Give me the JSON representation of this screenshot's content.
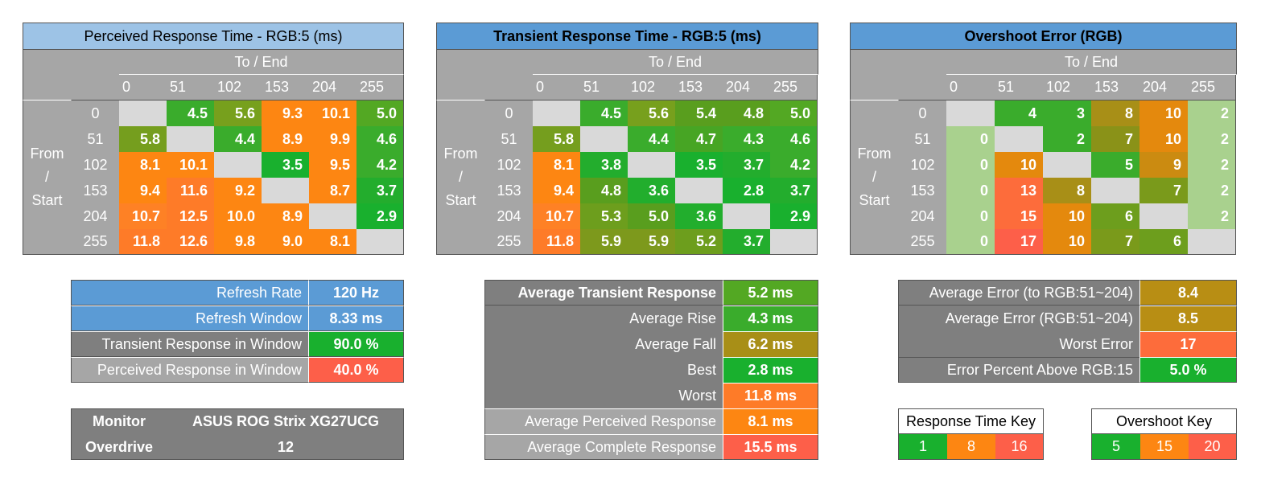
{
  "charts": {
    "prt": {
      "title": "Perceived Response Time - RGB:5 (ms)",
      "to_label": "To / End",
      "from_label": "From\n/\nStart",
      "col_ticks": [
        "0",
        "51",
        "102",
        "153",
        "204",
        "255"
      ],
      "row_ticks": [
        "0",
        "51",
        "102",
        "153",
        "204",
        "255"
      ]
    },
    "trt": {
      "title": "Transient Response Time - RGB:5 (ms)",
      "to_label": "To / End",
      "from_label": "From\n/\nStart",
      "col_ticks": [
        "0",
        "51",
        "102",
        "153",
        "204",
        "255"
      ],
      "row_ticks": [
        "0",
        "51",
        "102",
        "153",
        "204",
        "255"
      ]
    },
    "ovs": {
      "title": "Overshoot Error (RGB)",
      "to_label": "To / End",
      "from_label": "From\n/\nStart",
      "col_ticks": [
        "0",
        "51",
        "102",
        "153",
        "204",
        "255"
      ],
      "row_ticks": [
        "0",
        "51",
        "102",
        "153",
        "204",
        "255"
      ]
    }
  },
  "chart_data": [
    {
      "type": "heatmap",
      "title": "Perceived Response Time - RGB:5 (ms)",
      "xlabel": "To / End",
      "ylabel": "From / Start",
      "x": [
        0,
        51,
        102,
        153,
        204,
        255
      ],
      "y": [
        0,
        51,
        102,
        153,
        204,
        255
      ],
      "values": [
        [
          null,
          "4.5",
          "5.6",
          "9.3",
          "10.1",
          "5.0"
        ],
        [
          "5.8",
          null,
          "4.4",
          "8.9",
          "9.9",
          "4.6"
        ],
        [
          "8.1",
          "10.1",
          null,
          "3.5",
          "9.5",
          "4.2"
        ],
        [
          "9.4",
          "11.6",
          "9.2",
          null,
          "8.7",
          "3.7"
        ],
        [
          "10.7",
          "12.5",
          "10.0",
          "8.9",
          null,
          "2.9"
        ],
        [
          "11.8",
          "12.6",
          "9.8",
          "9.0",
          "8.1",
          null
        ]
      ],
      "colors": [
        [
          "#d9d9d9",
          "#3aac2c",
          "#77a01d",
          "#fd8612",
          "#fd8612",
          "#53a823"
        ],
        [
          "#759e1e",
          "#d9d9d9",
          "#3aac2c",
          "#fd8612",
          "#fd8612",
          "#3aac2c"
        ],
        [
          "#fd8612",
          "#fd8612",
          "#d9d9d9",
          "#19b02e",
          "#fd8612",
          "#3aac2c"
        ],
        [
          "#fd8612",
          "#fe7b28",
          "#fd8612",
          "#d9d9d9",
          "#fd8612",
          "#23ad2d"
        ],
        [
          "#fe8125",
          "#fe7b28",
          "#fd8612",
          "#fd8612",
          "#d9d9d9",
          "#19b02e"
        ],
        [
          "#fe7b28",
          "#fe7b28",
          "#fd8612",
          "#fd8612",
          "#fd8612",
          "#d9d9d9"
        ]
      ]
    },
    {
      "type": "heatmap",
      "title": "Transient Response Time - RGB:5 (ms)",
      "xlabel": "To / End",
      "ylabel": "From / Start",
      "x": [
        0,
        51,
        102,
        153,
        204,
        255
      ],
      "y": [
        0,
        51,
        102,
        153,
        204,
        255
      ],
      "values": [
        [
          null,
          "4.5",
          "5.6",
          "5.4",
          "4.8",
          "5.0"
        ],
        [
          "5.8",
          null,
          "4.4",
          "4.7",
          "4.3",
          "4.6"
        ],
        [
          "8.1",
          "3.8",
          null,
          "3.5",
          "3.7",
          "4.2"
        ],
        [
          "9.4",
          "4.8",
          "3.6",
          null,
          "2.8",
          "3.7"
        ],
        [
          "10.7",
          "5.3",
          "5.0",
          "3.6",
          null,
          "2.9"
        ],
        [
          "11.8",
          "5.9",
          "5.9",
          "5.2",
          "3.7",
          null
        ]
      ],
      "colors": [
        [
          "#d9d9d9",
          "#3aac2c",
          "#77a01d",
          "#599e1e",
          "#599e1e",
          "#53a823"
        ],
        [
          "#759e1e",
          "#d9d9d9",
          "#3aac2c",
          "#47a524",
          "#3aac2c",
          "#3aac2c"
        ],
        [
          "#fd8612",
          "#23ad2d",
          "#d9d9d9",
          "#19b02e",
          "#23ad2d",
          "#3aac2c"
        ],
        [
          "#fd8612",
          "#599e1e",
          "#22ae2d",
          "#d9d9d9",
          "#19b02e",
          "#23ad2d"
        ],
        [
          "#fe8125",
          "#6d9e1d",
          "#599e1e",
          "#22ae2d",
          "#d9d9d9",
          "#19b02e"
        ],
        [
          "#fe7b28",
          "#7d991c",
          "#7d991c",
          "#6d9e1d",
          "#23ad2d",
          "#d9d9d9"
        ]
      ]
    },
    {
      "type": "heatmap",
      "title": "Overshoot Error (RGB)",
      "xlabel": "To / End",
      "ylabel": "From / Start",
      "x": [
        0,
        51,
        102,
        153,
        204,
        255
      ],
      "y": [
        0,
        51,
        102,
        153,
        204,
        255
      ],
      "values": [
        [
          null,
          "4",
          "3",
          "8",
          "10",
          "2"
        ],
        [
          "0",
          null,
          "2",
          "7",
          "10",
          "2"
        ],
        [
          "0",
          "10",
          null,
          "5",
          "9",
          "2"
        ],
        [
          "0",
          "13",
          "8",
          null,
          "7",
          "2"
        ],
        [
          "0",
          "15",
          "10",
          "6",
          null,
          "2"
        ],
        [
          "0",
          "17",
          "10",
          "7",
          "6",
          null
        ]
      ],
      "colors": [
        [
          "#d9d9d9",
          "#3aac2c",
          "#3aac2c",
          "#a88f17",
          "#e4890d",
          "#a9d18e"
        ],
        [
          "#a9d18e",
          "#d9d9d9",
          "#3aac2c",
          "#8a9218",
          "#e4890d",
          "#a9d18e"
        ],
        [
          "#a9d18e",
          "#e4890d",
          "#d9d9d9",
          "#3aac2c",
          "#cb8b11",
          "#a9d18e"
        ],
        [
          "#a9d18e",
          "#fd6c3b",
          "#a88f17",
          "#d9d9d9",
          "#7a9a1b",
          "#a9d18e"
        ],
        [
          "#a9d18e",
          "#fd6c3b",
          "#e4890d",
          "#6d9e1d",
          "#d9d9d9",
          "#a9d18e"
        ],
        [
          "#a9d18e",
          "#fd5f49",
          "#e4890d",
          "#7a9a1b",
          "#6d9e1d",
          "#d9d9d9"
        ]
      ]
    }
  ],
  "stats_refresh": {
    "refresh_rate_label": "Refresh Rate",
    "refresh_rate_value": "120 Hz",
    "refresh_window_label": "Refresh Window",
    "refresh_window_value": "8.33 ms",
    "transient_window_label": "Transient Response in Window",
    "transient_window_value": "90.0 %",
    "perceived_window_label": "Perceived Response in Window",
    "perceived_window_value": "40.0 %"
  },
  "monitor": {
    "monitor_label": "Monitor",
    "monitor_value": "ASUS ROG Strix XG27UCG",
    "overdrive_label": "Overdrive",
    "overdrive_value": "12"
  },
  "stats_response": {
    "avg_transient_label": "Average Transient Response",
    "avg_transient_value": "5.2 ms",
    "avg_rise_label": "Average Rise",
    "avg_rise_value": "4.3 ms",
    "avg_fall_label": "Average Fall",
    "avg_fall_value": "6.2 ms",
    "best_label": "Best",
    "best_value": "2.8 ms",
    "worst_label": "Worst",
    "worst_value": "11.8 ms",
    "avg_perceived_label": "Average Perceived Response",
    "avg_perceived_value": "8.1 ms",
    "avg_complete_label": "Average Complete Response",
    "avg_complete_value": "15.5 ms"
  },
  "stats_error": {
    "avg_error_to_label": "Average Error (to RGB:51~204)",
    "avg_error_to_value": "8.4",
    "avg_error_label": "Average Error (RGB:51~204)",
    "avg_error_value": "8.5",
    "worst_error_label": "Worst Error",
    "worst_error_value": "17",
    "error_percent_label": "Error Percent Above RGB:15",
    "error_percent_value": "5.0 %"
  },
  "keys": {
    "response_title": "Response Time Key",
    "response_values": [
      "1",
      "8",
      "16"
    ],
    "response_colors": [
      "#19b02e",
      "#fd8612",
      "#fd5f49"
    ],
    "overshoot_title": "Overshoot Key",
    "overshoot_values": [
      "5",
      "15",
      "20"
    ],
    "overshoot_colors": [
      "#19b02e",
      "#fd8612",
      "#fd5f49"
    ]
  },
  "colors": {
    "grid_gray": "#a6a6a6",
    "diag_gray": "#d9d9d9",
    "title_blue_light": "#9dc3e6",
    "title_blue": "#5b9bd5",
    "stat_gray": "#7f7f7f",
    "green": "#19b02e",
    "orange": "#fd8612",
    "red": "#fd5f49"
  }
}
